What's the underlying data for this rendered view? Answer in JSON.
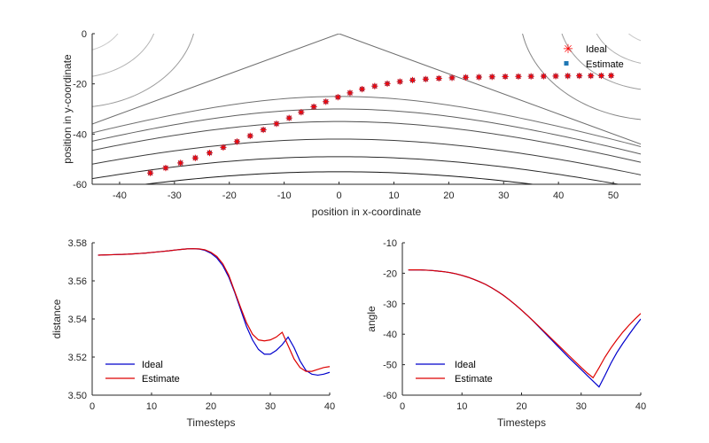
{
  "colors": {
    "ideal_top": "#ff0000",
    "estimate_top": "#1f77b4",
    "ideal_line": "#0000cc",
    "estimate_line": "#dd0000",
    "axis": "#262626"
  },
  "chart_data": [
    {
      "type": "scatter",
      "xlabel": "position in x-coordinate",
      "ylabel": "position in y-coordinate",
      "xlim": [
        -45,
        55
      ],
      "ylim": [
        -60,
        0
      ],
      "xticks": [
        -40,
        -30,
        -20,
        -10,
        0,
        10,
        20,
        30,
        40,
        50
      ],
      "yticks": [
        0,
        -20,
        -40,
        -60
      ],
      "legend": "top-right",
      "background": "contour lines",
      "series": [
        {
          "name": "Ideal",
          "marker": "star",
          "x": [
            -34.4,
            -31.6,
            -28.9,
            -26.2,
            -23.6,
            -21.1,
            -18.6,
            -16.2,
            -13.8,
            -11.4,
            -9.1,
            -6.9,
            -4.6,
            -2.4,
            -0.2,
            2,
            4.2,
            6.5,
            8.8,
            11.1,
            13.4,
            15.8,
            18.2,
            20.6,
            23.1,
            25.5,
            27.9,
            30.3,
            32.7,
            35,
            37.3,
            39.5,
            41.7,
            43.8,
            45.9,
            47.8,
            49.6
          ],
          "y": [
            -55.5,
            -53.5,
            -51.5,
            -49.5,
            -47.5,
            -45.3,
            -43,
            -40.7,
            -38.3,
            -35.9,
            -33.6,
            -31.3,
            -29.1,
            -27.1,
            -25.3,
            -23.6,
            -22.1,
            -20.9,
            -19.9,
            -19.1,
            -18.5,
            -18.1,
            -17.8,
            -17.6,
            -17.4,
            -17.3,
            -17.2,
            -17.1,
            -17.05,
            -17,
            -16.95,
            -16.9,
            -16.85,
            -16.8,
            -16.8,
            -16.75,
            -16.7
          ]
        },
        {
          "name": "Estimate",
          "marker": "square",
          "x": [
            -34.4,
            -31.6,
            -28.9,
            -26.2,
            -23.6,
            -21.1,
            -18.6,
            -16.2,
            -13.8,
            -11.4,
            -9.1,
            -6.9,
            -4.6,
            -2.4,
            -0.2,
            2,
            4.2,
            6.5,
            8.8,
            11.1,
            13.4,
            15.8,
            18.2,
            20.6,
            23.1,
            25.5,
            27.9,
            30.3,
            32.7,
            35,
            37.3,
            39.5,
            41.7,
            43.8,
            45.9,
            47.8,
            49.6
          ],
          "y": [
            -55.5,
            -53.5,
            -51.5,
            -49.5,
            -47.5,
            -45.3,
            -43,
            -40.7,
            -38.3,
            -35.9,
            -33.6,
            -31.3,
            -29.1,
            -27.1,
            -25.3,
            -23.6,
            -22.1,
            -20.9,
            -19.9,
            -19.1,
            -18.5,
            -18.1,
            -17.8,
            -17.6,
            -17.4,
            -17.3,
            -17.2,
            -17.1,
            -17.05,
            -17,
            -16.95,
            -16.9,
            -16.85,
            -16.8,
            -16.8,
            -16.75,
            -16.7
          ]
        }
      ]
    },
    {
      "type": "line",
      "xlabel": "Timesteps",
      "ylabel": "distance",
      "xlim": [
        0,
        40
      ],
      "ylim": [
        3.5,
        3.58
      ],
      "xticks": [
        0,
        10,
        20,
        30,
        40
      ],
      "yticks": [
        3.5,
        3.52,
        3.54,
        3.56,
        3.58
      ],
      "legend": "bottom-left",
      "x": [
        1,
        2,
        3,
        4,
        5,
        6,
        7,
        8,
        9,
        10,
        11,
        12,
        13,
        14,
        15,
        16,
        17,
        18,
        19,
        20,
        21,
        22,
        23,
        24,
        25,
        26,
        27,
        28,
        29,
        30,
        31,
        32,
        33,
        34,
        35,
        36,
        37,
        38,
        39,
        40
      ],
      "series": [
        {
          "name": "Ideal",
          "values": [
            3.5735,
            3.5736,
            3.5737,
            3.5738,
            3.5739,
            3.574,
            3.5742,
            3.5744,
            3.5746,
            3.5749,
            3.5752,
            3.5755,
            3.5758,
            3.5762,
            3.5765,
            3.5768,
            3.5769,
            3.5767,
            3.576,
            3.5745,
            3.572,
            3.568,
            3.562,
            3.554,
            3.545,
            3.536,
            3.529,
            3.524,
            3.5215,
            3.5215,
            3.5235,
            3.5265,
            3.5305,
            3.525,
            3.518,
            3.513,
            3.511,
            3.5105,
            3.511,
            3.512
          ]
        },
        {
          "name": "Estimate",
          "values": [
            3.5735,
            3.5736,
            3.5737,
            3.5738,
            3.5739,
            3.574,
            3.5742,
            3.5744,
            3.5746,
            3.5749,
            3.5752,
            3.5755,
            3.5758,
            3.5762,
            3.5765,
            3.5768,
            3.5769,
            3.5768,
            3.5763,
            3.575,
            3.5728,
            3.569,
            3.563,
            3.5545,
            3.546,
            3.538,
            3.532,
            3.529,
            3.5285,
            3.529,
            3.5305,
            3.533,
            3.526,
            3.519,
            3.5145,
            3.5125,
            3.5125,
            3.5135,
            3.5145,
            3.515
          ]
        }
      ]
    },
    {
      "type": "line",
      "xlabel": "Timesteps",
      "ylabel": "angle",
      "xlim": [
        0,
        40
      ],
      "ylim": [
        -60,
        -10
      ],
      "xticks": [
        0,
        10,
        20,
        30,
        40
      ],
      "yticks": [
        -10,
        -20,
        -30,
        -40,
        -50,
        -60
      ],
      "legend": "bottom-left",
      "x": [
        1,
        2,
        3,
        4,
        5,
        6,
        7,
        8,
        9,
        10,
        11,
        12,
        13,
        14,
        15,
        16,
        17,
        18,
        19,
        20,
        21,
        22,
        23,
        24,
        25,
        26,
        27,
        28,
        29,
        30,
        31,
        32,
        33,
        34,
        35,
        36,
        37,
        38,
        39,
        40
      ],
      "series": [
        {
          "name": "Ideal",
          "values": [
            -18.9,
            -18.9,
            -18.9,
            -19,
            -19.1,
            -19.3,
            -19.5,
            -19.8,
            -20.2,
            -20.7,
            -21.3,
            -22,
            -22.8,
            -23.7,
            -24.8,
            -26,
            -27.3,
            -28.8,
            -30.4,
            -32.1,
            -33.9,
            -35.8,
            -37.8,
            -39.8,
            -41.8,
            -43.8,
            -45.8,
            -47.8,
            -49.7,
            -51.6,
            -53.5,
            -55.4,
            -57.3,
            -53.5,
            -49.5,
            -46,
            -43,
            -40.2,
            -37.5,
            -35
          ]
        },
        {
          "name": "Estimate",
          "values": [
            -18.9,
            -18.9,
            -18.9,
            -19,
            -19.1,
            -19.3,
            -19.5,
            -19.8,
            -20.2,
            -20.7,
            -21.3,
            -22,
            -22.8,
            -23.7,
            -24.8,
            -26,
            -27.3,
            -28.8,
            -30.4,
            -32.1,
            -33.9,
            -35.7,
            -37.6,
            -39.5,
            -41.4,
            -43.3,
            -45.2,
            -47.1,
            -49,
            -50.9,
            -52.7,
            -54.3,
            -51,
            -47.5,
            -44.5,
            -41.8,
            -39.3,
            -37.1,
            -35.1,
            -33.2
          ]
        }
      ]
    }
  ]
}
